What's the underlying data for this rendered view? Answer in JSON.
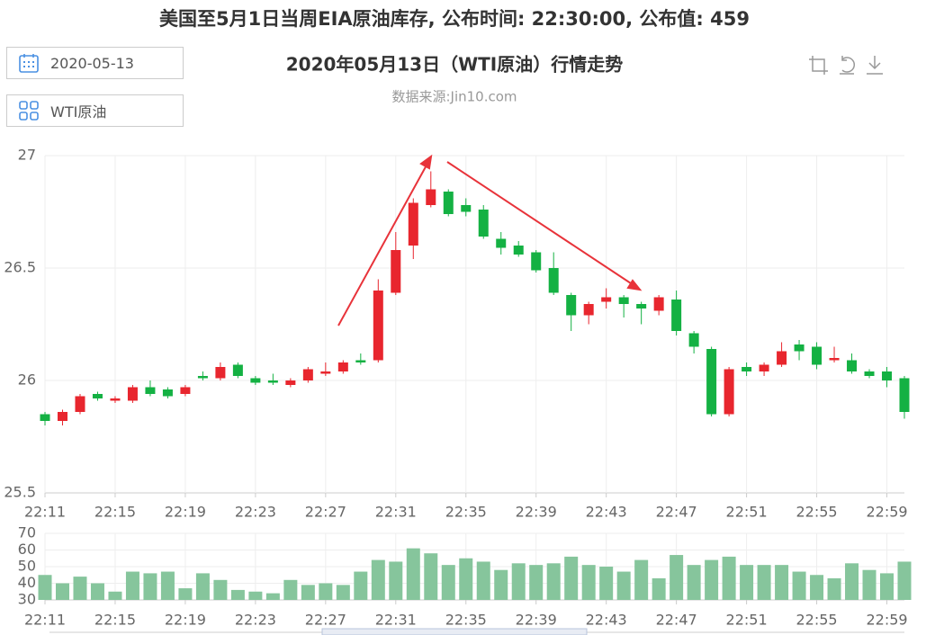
{
  "header": {
    "title": "美国至5月1日当周EIA原油库存, 公布时间: 22:30:00, 公布值: 459",
    "date": "2020-05-13",
    "instrument": "WTI原油"
  },
  "chart_data": [
    {
      "type": "candlestick",
      "title": "2020年05月13日（WTI原油）行情走势",
      "subtitle": "数据来源:Jin10.com",
      "categories": [
        "22:11",
        null,
        null,
        null,
        "22:15",
        null,
        null,
        null,
        "22:19",
        null,
        null,
        null,
        "22:23",
        null,
        null,
        null,
        "22:27",
        null,
        null,
        null,
        "22:31",
        null,
        null,
        null,
        "22:35",
        null,
        null,
        null,
        "22:39",
        null,
        null,
        null,
        "22:43",
        null,
        null,
        null,
        "22:47",
        null,
        null,
        null,
        "22:51",
        null,
        null,
        null,
        "22:55",
        null,
        null,
        null,
        "22:59",
        null
      ],
      "open": [
        25.85,
        25.82,
        25.86,
        25.94,
        25.91,
        25.91,
        25.97,
        25.96,
        25.94,
        26.02,
        26.01,
        26.07,
        26.01,
        26.0,
        25.98,
        26.0,
        26.03,
        26.04,
        26.09,
        26.09,
        26.39,
        26.6,
        26.78,
        26.84,
        26.78,
        26.76,
        26.63,
        26.6,
        26.57,
        26.5,
        26.38,
        26.29,
        26.35,
        26.37,
        26.34,
        26.31,
        26.36,
        26.21,
        26.14,
        25.85,
        26.06,
        26.04,
        26.07,
        26.16,
        26.15,
        26.09,
        26.09,
        26.04,
        26.04,
        26.01
      ],
      "high": [
        25.86,
        25.87,
        25.94,
        25.95,
        25.93,
        25.98,
        26.0,
        25.97,
        25.98,
        26.04,
        26.08,
        26.08,
        26.02,
        26.03,
        26.01,
        26.06,
        26.08,
        26.09,
        26.12,
        26.45,
        26.66,
        26.81,
        26.93,
        26.85,
        26.81,
        26.78,
        26.66,
        26.62,
        26.58,
        26.57,
        26.39,
        26.35,
        26.41,
        26.38,
        26.35,
        26.38,
        26.4,
        26.22,
        26.15,
        26.06,
        26.08,
        26.08,
        26.17,
        26.18,
        26.17,
        26.15,
        26.12,
        26.05,
        26.06,
        26.02
      ],
      "low": [
        25.8,
        25.8,
        25.85,
        25.91,
        25.9,
        25.9,
        25.93,
        25.92,
        25.93,
        26.0,
        26.0,
        26.01,
        25.98,
        25.98,
        25.97,
        25.99,
        26.02,
        26.03,
        26.07,
        26.08,
        26.38,
        26.54,
        26.77,
        26.73,
        26.73,
        26.63,
        26.56,
        26.55,
        26.48,
        26.38,
        26.22,
        26.25,
        26.32,
        26.28,
        26.25,
        26.29,
        26.2,
        26.12,
        25.84,
        25.84,
        26.02,
        26.02,
        26.06,
        26.09,
        26.05,
        26.08,
        26.03,
        26.01,
        25.97,
        25.83
      ],
      "close": [
        25.82,
        25.86,
        25.93,
        25.92,
        25.92,
        25.97,
        25.94,
        25.93,
        25.97,
        26.01,
        26.06,
        26.02,
        25.99,
        25.99,
        26.0,
        26.05,
        26.04,
        26.08,
        26.08,
        26.4,
        26.58,
        26.79,
        26.85,
        26.74,
        26.75,
        26.64,
        26.59,
        26.56,
        26.49,
        26.39,
        26.29,
        26.34,
        26.37,
        26.34,
        26.32,
        26.37,
        26.22,
        26.15,
        25.85,
        26.05,
        26.04,
        26.07,
        26.13,
        26.13,
        26.07,
        26.1,
        26.04,
        26.02,
        26.0,
        25.86
      ],
      "up_color": "#e8262e",
      "down_color": "#14b143",
      "ylim": [
        25.5,
        27
      ],
      "yticks": [
        25.5,
        26,
        26.5,
        27
      ],
      "grid": true
    },
    {
      "type": "bar",
      "categories": [
        "22:11",
        null,
        null,
        null,
        "22:15",
        null,
        null,
        null,
        "22:19",
        null,
        null,
        null,
        "22:23",
        null,
        null,
        null,
        "22:27",
        null,
        null,
        null,
        "22:31",
        null,
        null,
        null,
        "22:35",
        null,
        null,
        null,
        "22:39",
        null,
        null,
        null,
        "22:43",
        null,
        null,
        null,
        "22:47",
        null,
        null,
        null,
        "22:51",
        null,
        null,
        null,
        "22:55",
        null,
        null,
        null,
        "22:59",
        null
      ],
      "values": [
        45,
        40,
        44,
        40,
        35,
        47,
        46,
        47,
        37,
        46,
        42,
        36,
        35,
        34,
        42,
        39,
        40,
        39,
        47,
        54,
        53,
        61,
        58,
        51,
        55,
        53,
        48,
        52,
        51,
        52,
        56,
        51,
        50,
        47,
        54,
        43,
        57,
        51,
        54,
        56,
        51,
        51,
        51,
        47,
        45,
        43,
        52,
        48,
        46,
        53
      ],
      "color": "#86c59c",
      "ylim": [
        30,
        70
      ],
      "yticks": [
        30,
        40,
        50,
        60,
        70
      ],
      "grid": true
    }
  ]
}
